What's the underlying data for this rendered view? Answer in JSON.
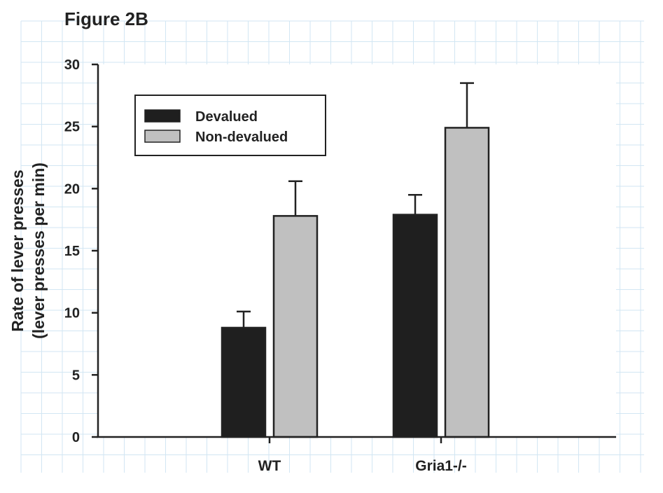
{
  "figure_title": "Figure 2B",
  "chart_data": {
    "type": "bar",
    "title": "",
    "xlabel": "",
    "ylabel": [
      "Rate of lever presses",
      "(lever presses per min)"
    ],
    "categories": [
      "WT",
      "Gria1-/-"
    ],
    "ylim": [
      0,
      30
    ],
    "yticks": [
      "0",
      "5",
      "10",
      "15",
      "20",
      "25",
      "30"
    ],
    "series": [
      {
        "name": "Devalued",
        "values": [
          8.8,
          17.9
        ],
        "error": [
          1.3,
          1.6
        ],
        "color": "#1f1f1f"
      },
      {
        "name": "Non-devalued",
        "values": [
          17.8,
          24.9
        ],
        "error": [
          2.8,
          3.6
        ],
        "color": "#c0c0c0"
      }
    ],
    "legend_position": "top-left",
    "background_grid": "light blue graph-paper grid"
  }
}
